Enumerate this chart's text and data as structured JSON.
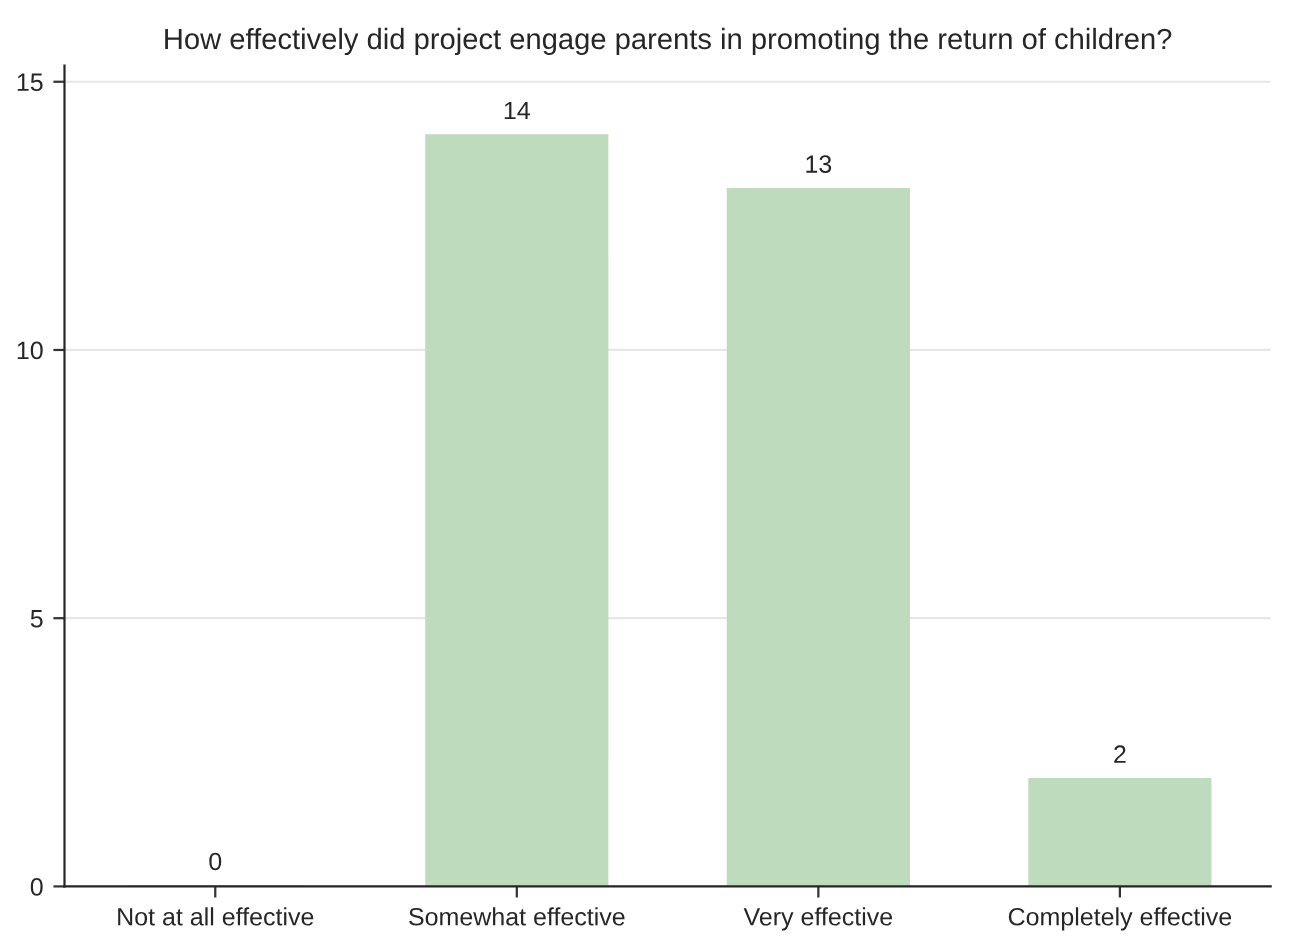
{
  "chart_data": {
    "type": "bar",
    "title": "How effectively did project engage parents in promoting the return of children?",
    "categories": [
      "Not at all effective",
      "Somewhat effective",
      "Very effective",
      "Completely effective"
    ],
    "values": [
      0,
      14,
      13,
      2
    ],
    "color": "#bedbbd",
    "ylim": [
      0,
      15.3
    ],
    "yticks": [
      0,
      5,
      10,
      15
    ],
    "grid": "y",
    "data_labels": true
  }
}
